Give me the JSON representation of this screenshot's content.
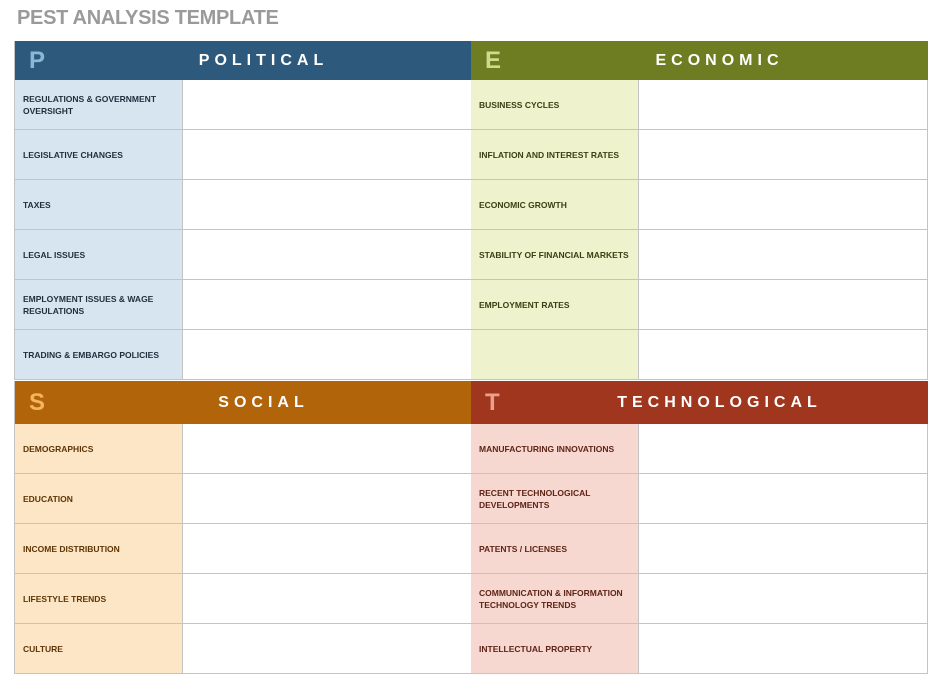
{
  "title": "PEST ANALYSIS TEMPLATE",
  "quadrants": [
    {
      "key": "political",
      "letter": "P",
      "name": "POLITICAL",
      "colors": {
        "header": "#2d5a7c",
        "letter": "#8db6d6",
        "label_bg": "#d6e5ef",
        "label_text": "#1e2e3c"
      },
      "items": [
        "REGULATIONS & GOVERNMENT OVERSIGHT",
        "LEGISLATIVE CHANGES",
        "TAXES",
        "LEGAL ISSUES",
        "EMPLOYMENT ISSUES & WAGE REGULATIONS",
        "TRADING & EMBARGO POLICIES"
      ]
    },
    {
      "key": "economic",
      "letter": "E",
      "name": "ECONOMIC",
      "colors": {
        "header": "#6e7c22",
        "letter": "#cddc8c",
        "label_bg": "#eef2cd",
        "label_text": "#3a4012"
      },
      "items": [
        "BUSINESS CYCLES",
        "INFLATION AND INTEREST RATES",
        "ECONOMIC GROWTH",
        "STABILITY OF FINANCIAL MARKETS",
        "EMPLOYMENT RATES",
        ""
      ]
    },
    {
      "key": "social",
      "letter": "S",
      "name": "SOCIAL",
      "colors": {
        "header": "#b2640a",
        "letter": "#f6b55c",
        "label_bg": "#fde6c6",
        "label_text": "#5e3606"
      },
      "items": [
        "DEMOGRAPHICS",
        "EDUCATION",
        "INCOME DISTRIBUTION",
        "LIFESTYLE TRENDS",
        "CULTURE"
      ]
    },
    {
      "key": "technological",
      "letter": "T",
      "name": "TECHNOLOGICAL",
      "colors": {
        "header": "#a0361e",
        "letter": "#eaa08c",
        "label_bg": "#f6d8d0",
        "label_text": "#5e2416"
      },
      "items": [
        "MANUFACTURING INNOVATIONS",
        "RECENT TECHNOLOGICAL DEVELOPMENTS",
        "PATENTS / LICENSES",
        "COMMUNICATION & INFORMATION TECHNOLOGY TRENDS",
        "INTELLECTUAL PROPERTY"
      ]
    }
  ]
}
